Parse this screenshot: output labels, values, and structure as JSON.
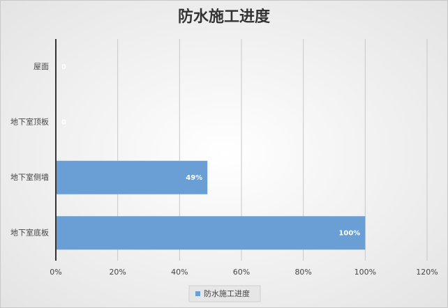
{
  "chart_data": {
    "type": "hbar",
    "title": "防水施工进度",
    "categories": [
      "屋面",
      "地下室顶板",
      "地下室侧墙",
      "地下室底板"
    ],
    "series": [
      {
        "name": "防水施工进度",
        "color": "#6a9fd6",
        "values": [
          0,
          0,
          49,
          100
        ],
        "value_labels": [
          "0",
          "0",
          "49%",
          "100%"
        ]
      }
    ],
    "xlim": [
      0,
      120
    ],
    "xticks": [
      {
        "value": 0,
        "label": "0%"
      },
      {
        "value": 20,
        "label": "20%"
      },
      {
        "value": 40,
        "label": "40%"
      },
      {
        "value": 60,
        "label": "60%"
      },
      {
        "value": 80,
        "label": "80%"
      },
      {
        "value": 100,
        "label": "100%"
      },
      {
        "value": 120,
        "label": "120%"
      }
    ],
    "grid": true,
    "legend": "bottom"
  }
}
